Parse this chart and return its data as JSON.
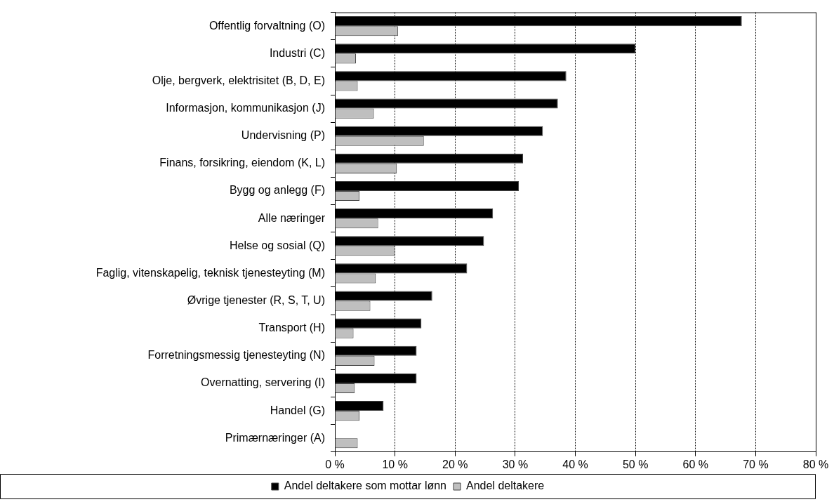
{
  "chart_data": {
    "type": "bar",
    "orientation": "horizontal",
    "categories": [
      "Offentlig forvaltning (O)",
      "Industri (C)",
      "Olje, bergverk, elektrisitet (B, D, E)",
      "Informasjon, kommunikasjon (J)",
      "Undervisning (P)",
      "Finans, forsikring, eiendom (K, L)",
      "Bygg og anlegg (F)",
      "Alle næringer",
      "Helse og sosial (Q)",
      "Faglig, vitenskapelig, teknisk tjenesteyting (M)",
      "Øvrige tjenester (R, S, T, U)",
      "Transport (H)",
      "Forretningsmessig tjenesteyting (N)",
      "Overnatting, servering (I)",
      "Handel (G)",
      "Primærnæringer (A)"
    ],
    "series": [
      {
        "name": "Andel deltakere som mottar lønn",
        "color": "#000000",
        "values": [
          67.7,
          50.0,
          38.5,
          37.1,
          34.6,
          31.3,
          30.6,
          26.3,
          24.8,
          22.0,
          16.2,
          14.4,
          13.6,
          13.6,
          8.1,
          0
        ]
      },
      {
        "name": "Andel deltakere",
        "color": "#bfbfbf",
        "values": [
          10.5,
          3.5,
          3.8,
          6.5,
          14.8,
          10.3,
          4.1,
          7.2,
          10.0,
          6.8,
          5.9,
          3.1,
          6.6,
          3.3,
          4.1,
          3.8
        ]
      }
    ],
    "xlim": [
      0,
      80
    ],
    "xticks": [
      {
        "value": 0,
        "label": "0 %"
      },
      {
        "value": 10,
        "label": "10 %"
      },
      {
        "value": 20,
        "label": "20 %"
      },
      {
        "value": 30,
        "label": "30 %"
      },
      {
        "value": 40,
        "label": "40 %"
      },
      {
        "value": 50,
        "label": "50 %"
      },
      {
        "value": 60,
        "label": "60 %"
      },
      {
        "value": 70,
        "label": "70 %"
      },
      {
        "value": 80,
        "label": "80 %"
      }
    ],
    "grid": "x",
    "legend": "bottom"
  }
}
